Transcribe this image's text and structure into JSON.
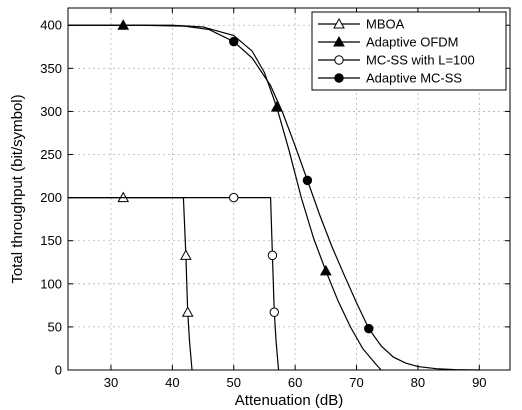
{
  "chart_data": {
    "type": "line",
    "xlabel": "Attenuation (dB)",
    "ylabel": "Total throughput (bit/symbol)",
    "xlim": [
      23,
      95
    ],
    "ylim": [
      0,
      420
    ],
    "xticks": [
      30,
      40,
      50,
      60,
      70,
      80,
      90
    ],
    "yticks": [
      0,
      50,
      100,
      150,
      200,
      250,
      300,
      350,
      400
    ],
    "grid": true,
    "legend_position": "top-right",
    "series": [
      {
        "name": "MBOA",
        "marker": "open-triangle",
        "x": [
          23,
          32,
          41.8,
          42.2,
          42.5,
          42.8,
          43.2
        ],
        "y": [
          200,
          200,
          200,
          133,
          67,
          33,
          0
        ],
        "markers_at": [
          [
            32,
            200
          ],
          [
            42.2,
            133
          ],
          [
            42.5,
            67
          ]
        ]
      },
      {
        "name": "Adaptive OFDM",
        "marker": "filled-triangle",
        "x": [
          23,
          32,
          40,
          45,
          50,
          53,
          55,
          57,
          59,
          61,
          63,
          65,
          67,
          69,
          71,
          73,
          74
        ],
        "y": [
          400,
          400,
          400,
          398,
          388,
          370,
          345,
          305,
          255,
          200,
          153,
          115,
          80,
          50,
          25,
          8,
          0
        ],
        "markers_at": [
          [
            32,
            400
          ],
          [
            57,
            305
          ],
          [
            65,
            115
          ]
        ]
      },
      {
        "name": "MC-SS with L=100",
        "marker": "open-circle",
        "x": [
          23,
          50,
          56,
          56.3,
          56.6,
          56.9,
          57.3
        ],
        "y": [
          200,
          200,
          200,
          133,
          67,
          33,
          0
        ],
        "markers_at": [
          [
            50,
            200
          ],
          [
            56.3,
            133
          ],
          [
            56.6,
            67
          ]
        ]
      },
      {
        "name": "Adaptive MC-SS",
        "marker": "filled-circle",
        "x": [
          23,
          35,
          42,
          46,
          50,
          53,
          56,
          58,
          60,
          62,
          64,
          66,
          68,
          70,
          72,
          74,
          76,
          78,
          80,
          83,
          86,
          90
        ],
        "y": [
          400,
          400,
          399,
          395,
          381,
          362,
          330,
          298,
          260,
          220,
          180,
          143,
          110,
          78,
          48,
          28,
          15,
          8,
          4,
          1.5,
          0.5,
          0
        ],
        "markers_at": [
          [
            50,
            381
          ],
          [
            62,
            220
          ],
          [
            72,
            48
          ]
        ]
      }
    ]
  }
}
